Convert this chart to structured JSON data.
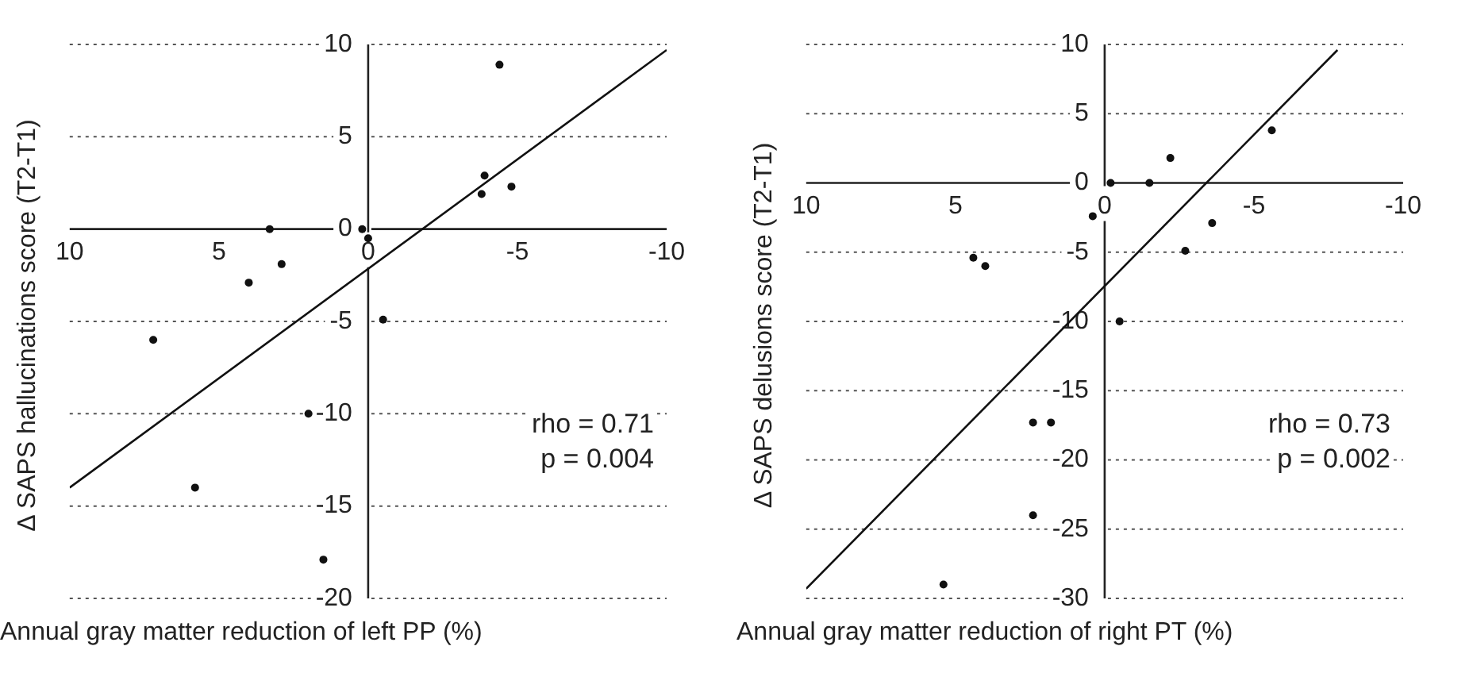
{
  "chart_data": [
    {
      "type": "scatter",
      "xlabel": "Annual gray matter reduction of left PP (%)",
      "ylabel": "Δ SAPS hallucinations score (T2-T1)",
      "xlim": [
        10,
        -10
      ],
      "xticks": [
        10,
        5,
        0,
        -5,
        -10
      ],
      "ylim": [
        -20,
        10
      ],
      "yticks": [
        10,
        5,
        0,
        -5,
        -10,
        -15,
        -20
      ],
      "grid": "y",
      "legend": false,
      "marker": "circle",
      "annotations": [
        "rho = 0.71",
        "p = 0.004"
      ],
      "series": [
        {
          "color": "#111111",
          "x": [
            -4.4,
            -3.9,
            -3.8,
            -4.8,
            3.3,
            0.2,
            0,
            2.9,
            4,
            7.2,
            -0.5,
            2,
            5.8,
            1.5
          ],
          "values": [
            8.9,
            2.9,
            1.9,
            2.3,
            0,
            0,
            -0.5,
            -1.9,
            -2.9,
            -6,
            -4.9,
            -10,
            -14,
            -17.9
          ]
        },
        {
          "type": "line",
          "color": "#111111",
          "marker": "none",
          "line_style": "solid",
          "x": [
            10,
            -10
          ],
          "values": [
            -14,
            9.7
          ]
        }
      ]
    },
    {
      "type": "scatter",
      "xlabel": "Annual gray matter reduction of right PT (%)",
      "ylabel": "Δ SAPS delusions score (T2-T1)",
      "xlim": [
        10,
        -10
      ],
      "xticks": [
        10,
        5,
        0,
        -5,
        -10
      ],
      "ylim": [
        -30,
        10
      ],
      "yticks": [
        10,
        5,
        0,
        -5,
        -10,
        -15,
        -20,
        -25,
        -30
      ],
      "grid": "y",
      "legend": false,
      "marker": "circle",
      "annotations": [
        "rho = 0.73",
        "p = 0.002"
      ],
      "series": [
        {
          "color": "#111111",
          "x": [
            -5.6,
            -2.2,
            -0.2,
            -1.5,
            0.4,
            -3.6,
            -2.7,
            4.4,
            4,
            -0.5,
            2.4,
            1.8,
            2.4,
            5.4
          ],
          "values": [
            3.8,
            1.8,
            0,
            0,
            -2.4,
            -2.9,
            -4.9,
            -5.4,
            -6,
            -10,
            -17.3,
            -17.3,
            -24,
            -29
          ]
        },
        {
          "type": "line",
          "color": "#111111",
          "marker": "none",
          "line_style": "solid",
          "x": [
            10,
            -7.8
          ],
          "values": [
            -29.3,
            9.6
          ]
        }
      ]
    }
  ]
}
